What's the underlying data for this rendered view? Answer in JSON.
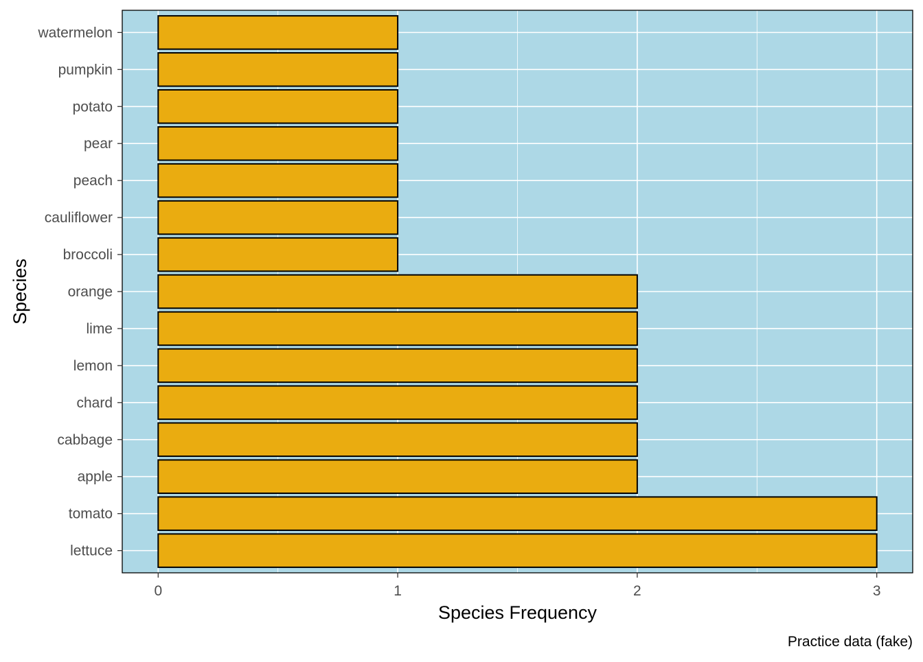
{
  "chart_data": {
    "type": "bar",
    "orientation": "horizontal",
    "categories": [
      "watermelon",
      "pumpkin",
      "potato",
      "pear",
      "peach",
      "cauliflower",
      "broccoli",
      "orange",
      "lime",
      "lemon",
      "chard",
      "cabbage",
      "apple",
      "tomato",
      "lettuce"
    ],
    "values": [
      1,
      1,
      1,
      1,
      1,
      1,
      1,
      2,
      2,
      2,
      2,
      2,
      2,
      3,
      3
    ],
    "xlabel": "Species Frequency",
    "ylabel": "Species",
    "caption": "Practice data (fake)",
    "xticks": [
      0,
      1,
      2,
      3
    ],
    "xlim": [
      -0.15,
      3.15
    ],
    "grid": true,
    "colors": {
      "bar_fill": "#EAAC10",
      "bar_stroke": "#000000",
      "panel_background": "#ADD8E6",
      "grid": "#FFFFFF"
    }
  }
}
